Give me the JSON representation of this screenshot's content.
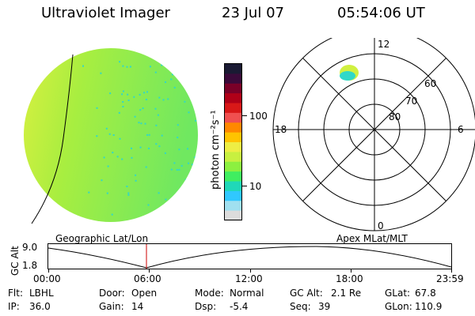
{
  "header": {
    "title": "Ultraviolet Imager",
    "date": "23 Jul 07",
    "time": "05:54:06 UT"
  },
  "colorbar": {
    "unit_label": "photon cm⁻²s⁻¹",
    "ticks": [
      "100",
      "10"
    ],
    "colors": [
      "#1a1a33",
      "#3a0a3a",
      "#7a0028",
      "#b00018",
      "#d81818",
      "#f05050",
      "#ff8800",
      "#ffc400",
      "#eeee44",
      "#c8f040",
      "#8cf040",
      "#40ee60",
      "#20d8b8",
      "#30c8ff",
      "#a0e0f0",
      "#dcdcdc"
    ]
  },
  "polar_plot": {
    "lat_labels": [
      "60",
      "70",
      "80"
    ],
    "mlt_labels": {
      "top": "12",
      "left": "18",
      "right": "6",
      "bottom": "0"
    }
  },
  "image_colors": {
    "dayside": "#d8f040",
    "mid": "#a8ee40",
    "nightside": "#70e860",
    "speckle": "#30d8c8",
    "oval": "#d0f040"
  },
  "coords": {
    "left": "Geographic Lat/Lon",
    "right": "Apex MLat/MLT"
  },
  "altitude_plot": {
    "ylabel": "GC Alt",
    "y_ticks": [
      "9.0",
      "1.8"
    ],
    "x_ticks": [
      "00:00",
      "06:00",
      "12:00",
      "18:00",
      "23:59"
    ],
    "marker_color": "#cc0000"
  },
  "status": {
    "row1": [
      {
        "label": "Flt:",
        "value": "LBHL"
      },
      {
        "label": "Door:",
        "value": "Open"
      },
      {
        "label": "Mode:",
        "value": "Normal"
      },
      {
        "label": "GC Alt:",
        "value": "2.1 Re"
      },
      {
        "label": "GLat:",
        "value": "67.8"
      }
    ],
    "row2": [
      {
        "label": "IP:",
        "value": "36.0"
      },
      {
        "label": "Gain:",
        "value": "14"
      },
      {
        "label": "Dsp:",
        "value": "-5.4"
      },
      {
        "label": "Seq:",
        "value": "39"
      },
      {
        "label": "GLon:",
        "value": "110.9"
      }
    ]
  }
}
